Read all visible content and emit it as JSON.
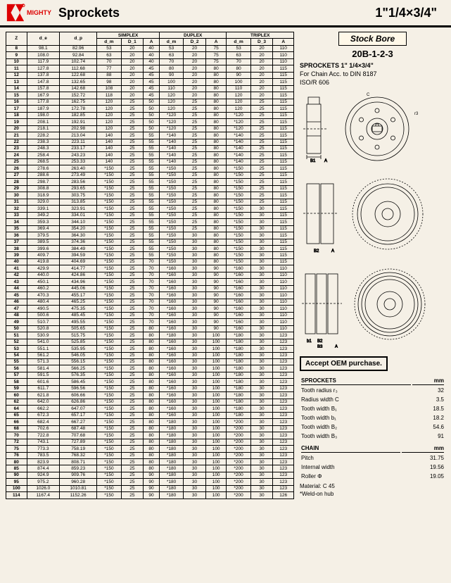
{
  "header": {
    "brand": "MIGHTY",
    "title": "Sprockets",
    "size": "1\"1/4×3/4\""
  },
  "tableHeaders": {
    "z": "Z",
    "de": "d_e",
    "dp": "d_p",
    "simplex": "SIMPLEX",
    "duplex": "DUPLEX",
    "triplex": "TRIPLEX",
    "dm": "d_m",
    "d1": "D_1",
    "d2": "D_2",
    "d3": "D_3",
    "a": "A"
  },
  "rows": [
    [
      "8",
      "98.1",
      "82.96",
      "53",
      "20",
      "40",
      "53",
      "20",
      "75",
      "53",
      "20",
      "110"
    ],
    [
      "9",
      "108.0",
      "92.84",
      "63",
      "20",
      "40",
      "63",
      "20",
      "75",
      "63",
      "20",
      "110"
    ],
    [
      "10",
      "117.9",
      "102.74",
      "70",
      "20",
      "40",
      "70",
      "20",
      "75",
      "70",
      "20",
      "110"
    ],
    [
      "11",
      "127.8",
      "112.68",
      "77",
      "20",
      "45",
      "80",
      "20",
      "80",
      "80",
      "20",
      "115"
    ],
    [
      "12",
      "137.8",
      "122.68",
      "88",
      "20",
      "45",
      "90",
      "20",
      "80",
      "90",
      "20",
      "115"
    ],
    [
      "13",
      "147.8",
      "132.65",
      "98",
      "20",
      "45",
      "100",
      "20",
      "80",
      "100",
      "20",
      "115"
    ],
    [
      "14",
      "157.8",
      "142.68",
      "108",
      "20",
      "45",
      "110",
      "20",
      "80",
      "110",
      "20",
      "115"
    ],
    [
      "15",
      "167.9",
      "152.72",
      "118",
      "20",
      "45",
      "120",
      "20",
      "80",
      "120",
      "20",
      "115"
    ],
    [
      "16",
      "177.8",
      "162.75",
      "120",
      "25",
      "50",
      "120",
      "25",
      "80",
      "120",
      "25",
      "115"
    ],
    [
      "17",
      "187.9",
      "172.78",
      "120",
      "25",
      "50",
      "120",
      "25",
      "80",
      "120",
      "25",
      "115"
    ],
    [
      "18",
      "198.0",
      "182.85",
      "120",
      "25",
      "50",
      "*120",
      "25",
      "80",
      "*120",
      "25",
      "115"
    ],
    [
      "19",
      "208.1",
      "192.91",
      "120",
      "25",
      "50",
      "*120",
      "25",
      "80",
      "*120",
      "25",
      "115"
    ],
    [
      "20",
      "218.1",
      "202.98",
      "120",
      "25",
      "50",
      "*120",
      "25",
      "80",
      "*120",
      "25",
      "115"
    ],
    [
      "21",
      "228.2",
      "213.04",
      "140",
      "25",
      "55",
      "*140",
      "25",
      "80",
      "*140",
      "25",
      "115"
    ],
    [
      "22",
      "238.3",
      "223.11",
      "140",
      "25",
      "55",
      "*140",
      "25",
      "80",
      "*140",
      "25",
      "115"
    ],
    [
      "23",
      "248.3",
      "233.17",
      "140",
      "25",
      "55",
      "*140",
      "25",
      "80",
      "*140",
      "25",
      "115"
    ],
    [
      "24",
      "258.4",
      "243.23",
      "140",
      "25",
      "55",
      "*140",
      "25",
      "80",
      "*140",
      "25",
      "115"
    ],
    [
      "25",
      "268.5",
      "253.33",
      "140",
      "25",
      "55",
      "*140",
      "25",
      "80",
      "*140",
      "25",
      "115"
    ],
    [
      "26",
      "278.6",
      "263.40",
      "*150",
      "25",
      "55",
      "*150",
      "25",
      "80",
      "*150",
      "25",
      "115"
    ],
    [
      "27",
      "288.6",
      "273.49",
      "*150",
      "25",
      "55",
      "*150",
      "25",
      "80",
      "*150",
      "25",
      "115"
    ],
    [
      "28",
      "298.7",
      "283.56",
      "*150",
      "25",
      "55",
      "*150",
      "25",
      "80",
      "*150",
      "25",
      "115"
    ],
    [
      "29",
      "308.8",
      "293.65",
      "*150",
      "25",
      "55",
      "*150",
      "25",
      "80",
      "*150",
      "25",
      "115"
    ],
    [
      "30",
      "318.9",
      "303.75",
      "*150",
      "25",
      "55",
      "*150",
      "25",
      "80",
      "*150",
      "25",
      "115"
    ],
    [
      "31",
      "329.0",
      "313.85",
      "*150",
      "25",
      "55",
      "*150",
      "25",
      "80",
      "*150",
      "25",
      "115"
    ],
    [
      "32",
      "339.1",
      "323.91",
      "*150",
      "25",
      "55",
      "*150",
      "25",
      "80",
      "*150",
      "30",
      "115"
    ],
    [
      "33",
      "349.2",
      "334.01",
      "*150",
      "25",
      "55",
      "*150",
      "25",
      "80",
      "*150",
      "30",
      "115"
    ],
    [
      "34",
      "359.3",
      "344.10",
      "*150",
      "25",
      "55",
      "*150",
      "25",
      "80",
      "*150",
      "30",
      "115"
    ],
    [
      "35",
      "369.4",
      "354.20",
      "*150",
      "25",
      "55",
      "*150",
      "25",
      "80",
      "*150",
      "30",
      "115"
    ],
    [
      "36",
      "379.5",
      "364.30",
      "*150",
      "25",
      "55",
      "*150",
      "30",
      "80",
      "*150",
      "30",
      "115"
    ],
    [
      "37",
      "389.5",
      "374.36",
      "*150",
      "25",
      "55",
      "*150",
      "30",
      "80",
      "*150",
      "30",
      "115"
    ],
    [
      "38",
      "399.6",
      "384.49",
      "*150",
      "25",
      "55",
      "*150",
      "30",
      "80",
      "*150",
      "30",
      "115"
    ],
    [
      "39",
      "409.7",
      "394.59",
      "*150",
      "25",
      "55",
      "*150",
      "30",
      "80",
      "*150",
      "30",
      "115"
    ],
    [
      "40",
      "419.8",
      "404.69",
      "*150",
      "25",
      "70",
      "*150",
      "30",
      "80",
      "*150",
      "30",
      "115"
    ],
    [
      "41",
      "429.9",
      "414.77",
      "*150",
      "25",
      "70",
      "*160",
      "30",
      "90",
      "*160",
      "30",
      "110"
    ],
    [
      "42",
      "440.0",
      "424.86",
      "*150",
      "25",
      "70",
      "*160",
      "30",
      "90",
      "*160",
      "30",
      "110"
    ],
    [
      "43",
      "450.1",
      "434.96",
      "*150",
      "25",
      "70",
      "*160",
      "30",
      "90",
      "*160",
      "30",
      "110"
    ],
    [
      "44",
      "460.2",
      "445.06",
      "*150",
      "25",
      "70",
      "*160",
      "30",
      "90",
      "*160",
      "30",
      "110"
    ],
    [
      "45",
      "470.3",
      "455.17",
      "*150",
      "25",
      "70",
      "*160",
      "30",
      "90",
      "*160",
      "30",
      "110"
    ],
    [
      "46",
      "480.4",
      "465.25",
      "*150",
      "25",
      "70",
      "*160",
      "30",
      "90",
      "*160",
      "30",
      "110"
    ],
    [
      "47",
      "490.5",
      "475.35",
      "*150",
      "25",
      "70",
      "*160",
      "30",
      "90",
      "*160",
      "30",
      "110"
    ],
    [
      "48",
      "500.6",
      "485.45",
      "*150",
      "25",
      "70",
      "*160",
      "30",
      "90",
      "*160",
      "30",
      "110"
    ],
    [
      "49",
      "510.7",
      "495.55",
      "*150",
      "25",
      "70",
      "*160",
      "30",
      "90",
      "*160",
      "30",
      "110"
    ],
    [
      "50",
      "520.8",
      "505.65",
      "*150",
      "25",
      "80",
      "*160",
      "30",
      "90",
      "*160",
      "30",
      "110"
    ],
    [
      "51",
      "530.9",
      "515.75",
      "*150",
      "25",
      "80",
      "*180",
      "30",
      "100",
      "*180",
      "30",
      "123"
    ],
    [
      "52",
      "541.0",
      "525.85",
      "*150",
      "25",
      "80",
      "*160",
      "30",
      "100",
      "*180",
      "30",
      "123"
    ],
    [
      "53",
      "551.1",
      "535.95",
      "*150",
      "25",
      "80",
      "*160",
      "30",
      "100",
      "*180",
      "30",
      "123"
    ],
    [
      "54",
      "561.2",
      "546.05",
      "*150",
      "25",
      "80",
      "*160",
      "30",
      "100",
      "*180",
      "30",
      "123"
    ],
    [
      "55",
      "571.3",
      "556.15",
      "*150",
      "25",
      "80",
      "*160",
      "30",
      "100",
      "*180",
      "30",
      "123"
    ],
    [
      "56",
      "581.4",
      "566.25",
      "*150",
      "25",
      "80",
      "*160",
      "30",
      "100",
      "*180",
      "30",
      "123"
    ],
    [
      "57",
      "591.5",
      "576.35",
      "*150",
      "25",
      "80",
      "*160",
      "30",
      "100",
      "*180",
      "30",
      "123"
    ],
    [
      "58",
      "601.6",
      "586.45",
      "*150",
      "25",
      "80",
      "*160",
      "30",
      "100",
      "*180",
      "30",
      "123"
    ],
    [
      "59",
      "611.7",
      "596.56",
      "*150",
      "25",
      "80",
      "*160",
      "30",
      "100",
      "*180",
      "30",
      "123"
    ],
    [
      "60",
      "621.8",
      "606.66",
      "*150",
      "25",
      "80",
      "*160",
      "30",
      "100",
      "*180",
      "30",
      "123"
    ],
    [
      "62",
      "642.0",
      "626.86",
      "*150",
      "25",
      "80",
      "*160",
      "30",
      "100",
      "*180",
      "30",
      "123"
    ],
    [
      "64",
      "662.2",
      "647.07",
      "*150",
      "25",
      "80",
      "*160",
      "30",
      "100",
      "*180",
      "30",
      "123"
    ],
    [
      "65",
      "672.3",
      "657.17",
      "*150",
      "25",
      "80",
      "*160",
      "30",
      "100",
      "*180",
      "30",
      "123"
    ],
    [
      "66",
      "682.4",
      "667.27",
      "*150",
      "25",
      "80",
      "*180",
      "30",
      "100",
      "*200",
      "30",
      "123"
    ],
    [
      "68",
      "702.6",
      "687.48",
      "*150",
      "25",
      "80",
      "*180",
      "30",
      "100",
      "*200",
      "30",
      "123"
    ],
    [
      "70",
      "722.8",
      "707.68",
      "*150",
      "25",
      "80",
      "*180",
      "30",
      "100",
      "*200",
      "30",
      "123"
    ],
    [
      "72",
      "743.1",
      "727.89",
      "*150",
      "25",
      "80",
      "*180",
      "30",
      "100",
      "*200",
      "30",
      "123"
    ],
    [
      "75",
      "773.3",
      "758.19",
      "*150",
      "25",
      "80",
      "*180",
      "30",
      "100",
      "*200",
      "30",
      "123"
    ],
    [
      "76",
      "783.5",
      "768.32",
      "*150",
      "25",
      "80",
      "*180",
      "30",
      "100",
      "*200",
      "30",
      "123"
    ],
    [
      "80",
      "823.9",
      "808.71",
      "*150",
      "25",
      "80",
      "*180",
      "30",
      "100",
      "*200",
      "30",
      "123"
    ],
    [
      "85",
      "874.4",
      "859.23",
      "*150",
      "25",
      "80",
      "*180",
      "30",
      "100",
      "*200",
      "30",
      "123"
    ],
    [
      "90",
      "924.9",
      "909.76",
      "*150",
      "25",
      "90",
      "*180",
      "30",
      "100",
      "*200",
      "30",
      "123"
    ],
    [
      "95",
      "975.2",
      "960.28",
      "*150",
      "25",
      "90",
      "*180",
      "30",
      "100",
      "*200",
      "30",
      "123"
    ],
    [
      "100",
      "1026.0",
      "1010.81",
      "*150",
      "25",
      "90",
      "*180",
      "30",
      "100",
      "*200",
      "30",
      "123"
    ],
    [
      "114",
      "1167.4",
      "1152.26",
      "*150",
      "25",
      "90",
      "*180",
      "30",
      "100",
      "*200",
      "30",
      "126"
    ]
  ],
  "right": {
    "stockBore": "Stock Bore",
    "code": "20B-1-2-3",
    "specTitle": "SPROCKETS 1\" 1/4×3/4\"",
    "specLine1": "For Chain  Acc. to  DIN 8187",
    "specLine2": "ISO/R 606",
    "oem": "Accept OEM purchase.",
    "sprocketsHead": "SPROCKETS",
    "mm": "mm",
    "sprocketRows": [
      [
        "Tooth radius r₃",
        "32"
      ],
      [
        "Radius width C",
        "3.5"
      ],
      [
        "Tooth width B₁",
        "18.5"
      ],
      [
        "Tooth width b₁",
        "18.2"
      ],
      [
        "Tooth width B₂",
        "54.6"
      ],
      [
        "Tooth width B₃",
        "91"
      ]
    ],
    "chainHead": "CHAIN",
    "chainRows": [
      [
        "Pitch",
        "31.75"
      ],
      [
        "Internal width",
        "19.56"
      ],
      [
        "Roller Φ",
        "19.05"
      ]
    ],
    "material": "Material: C 45",
    "weldon": "*Weld-on hub"
  }
}
